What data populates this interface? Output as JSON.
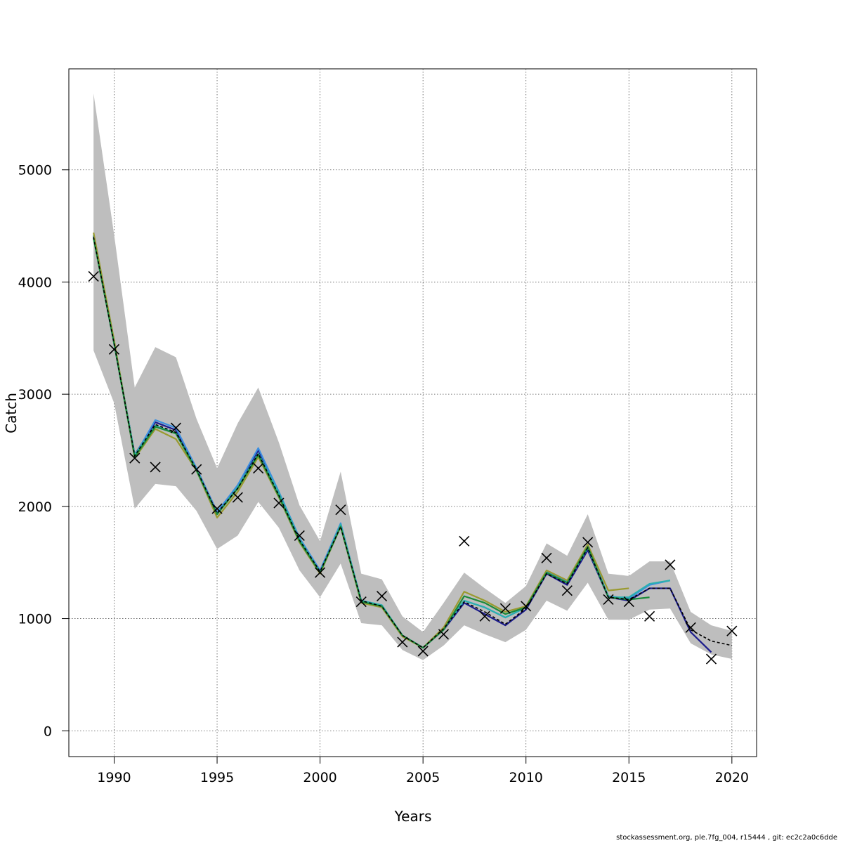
{
  "chart_data": {
    "type": "line",
    "xlabel": "Years",
    "ylabel": "Catch",
    "xlim": [
      1987.8,
      2021.2
    ],
    "ylim": [
      -230,
      5900
    ],
    "xticks": [
      1990,
      1995,
      2000,
      2005,
      2010,
      2015,
      2020
    ],
    "yticks": [
      0,
      1000,
      2000,
      3000,
      4000,
      5000
    ],
    "grid": true,
    "colors": {
      "band": "#bebebe",
      "observed": "#000000",
      "base": "#000000",
      "series": [
        "#1a1a8c",
        "#3c8fe0",
        "#2ab0b0",
        "#9a9a30",
        "#1a8a3a"
      ]
    },
    "band": {
      "x": [
        1989,
        1990,
        1991,
        1992,
        1993,
        1994,
        1995,
        1996,
        1997,
        1998,
        1999,
        2000,
        2001,
        2002,
        2003,
        2004,
        2005,
        2006,
        2007,
        2008,
        2009,
        2010,
        2011,
        2012,
        2013,
        2014,
        2015,
        2016,
        2017,
        2018,
        2019,
        2020
      ],
      "upper": [
        5680,
        4420,
        3060,
        3420,
        3330,
        2780,
        2340,
        2740,
        3060,
        2570,
        2010,
        1690,
        2310,
        1400,
        1350,
        1020,
        880,
        1140,
        1410,
        1270,
        1140,
        1290,
        1670,
        1560,
        1930,
        1400,
        1380,
        1510,
        1510,
        1060,
        940,
        890
      ],
      "lower": [
        3390,
        2920,
        1980,
        2200,
        2180,
        1960,
        1620,
        1740,
        2040,
        1810,
        1430,
        1190,
        1490,
        960,
        940,
        720,
        630,
        760,
        940,
        860,
        790,
        900,
        1160,
        1070,
        1320,
        990,
        990,
        1080,
        1090,
        780,
        680,
        640
      ]
    },
    "observed": {
      "marker": "x",
      "x": [
        1989,
        1990,
        1991,
        1992,
        1993,
        1994,
        1995,
        1996,
        1997,
        1998,
        1999,
        2000,
        2001,
        2002,
        2003,
        2004,
        2005,
        2006,
        2007,
        2008,
        2009,
        2010,
        2011,
        2012,
        2013,
        2014,
        2015,
        2016,
        2017,
        2018,
        2019,
        2020
      ],
      "y": [
        4050,
        3400,
        2430,
        2350,
        2700,
        2330,
        1980,
        2080,
        2340,
        2030,
        1740,
        1410,
        1970,
        1150,
        1200,
        790,
        710,
        860,
        1690,
        1020,
        1090,
        1110,
        1540,
        1250,
        1680,
        1170,
        1150,
        1020,
        1480,
        920,
        640,
        890
      ]
    },
    "base": {
      "dashed": true,
      "x": [
        1989,
        1990,
        1991,
        1992,
        1993,
        1994,
        1995,
        1996,
        1997,
        1998,
        1999,
        2000,
        2001,
        2002,
        2003,
        2004,
        2005,
        2006,
        2007,
        2008,
        2009,
        2010,
        2011,
        2012,
        2013,
        2014,
        2015,
        2016,
        2017,
        2018,
        2019,
        2020
      ],
      "y": [
        4400,
        3450,
        2450,
        2730,
        2660,
        2330,
        1940,
        2160,
        2470,
        2100,
        1700,
        1420,
        1820,
        1160,
        1110,
        850,
        740,
        910,
        1150,
        1060,
        950,
        1090,
        1400,
        1310,
        1630,
        1190,
        1170,
        1270,
        1270,
        900,
        800,
        760
      ]
    },
    "series": [
      {
        "x": [
          1989,
          1990,
          1991,
          1992,
          1993,
          1994,
          1995,
          1996,
          1997,
          1998,
          1999,
          2000,
          2001,
          2002,
          2003,
          2004,
          2005,
          2006,
          2007,
          2008,
          2009,
          2010,
          2011,
          2012,
          2013,
          2014,
          2015,
          2016,
          2017,
          2018,
          2019
        ],
        "y": [
          4410,
          3460,
          2460,
          2750,
          2680,
          2340,
          1950,
          2180,
          2500,
          2110,
          1710,
          1420,
          1830,
          1160,
          1110,
          850,
          740,
          900,
          1140,
          1040,
          940,
          1080,
          1400,
          1300,
          1610,
          1190,
          1160,
          1270,
          1270,
          880,
          700
        ]
      },
      {
        "x": [
          1989,
          1990,
          1991,
          1992,
          1993,
          1994,
          1995,
          1996,
          1997,
          1998,
          1999,
          2000,
          2001,
          2002,
          2003,
          2004,
          2005,
          2006,
          2007,
          2008,
          2009,
          2010,
          2011,
          2012,
          2013,
          2014,
          2015,
          2016,
          2017
        ],
        "y": [
          4400,
          3450,
          2450,
          2770,
          2700,
          2340,
          1950,
          2190,
          2520,
          2130,
          1720,
          1430,
          1850,
          1160,
          1120,
          850,
          740,
          910,
          1160,
          1100,
          1010,
          1100,
          1420,
          1330,
          1650,
          1200,
          1180,
          1300,
          1340
        ]
      },
      {
        "x": [
          1989,
          1990,
          1991,
          1992,
          1993,
          1994,
          1995,
          1996,
          1997,
          1998,
          1999,
          2000,
          2001,
          2002,
          2003,
          2004,
          2005,
          2006,
          2007,
          2008,
          2009,
          2010,
          2011,
          2012,
          2013,
          2014,
          2015,
          2016,
          2017
        ],
        "y": [
          4420,
          3460,
          2460,
          2720,
          2650,
          2330,
          1930,
          2170,
          2470,
          2120,
          1710,
          1410,
          1840,
          1160,
          1120,
          850,
          740,
          910,
          1160,
          1100,
          1010,
          1100,
          1410,
          1320,
          1630,
          1190,
          1190,
          1310,
          1340
        ]
      },
      {
        "x": [
          1989,
          1990,
          1991,
          1992,
          1993,
          1994,
          1995,
          1996,
          1997,
          1998,
          1999,
          2000,
          2001,
          2002,
          2003,
          2004,
          2005,
          2006,
          2007,
          2008,
          2009,
          2010,
          2011,
          2012,
          2013,
          2014,
          2015
        ],
        "y": [
          4440,
          3480,
          2430,
          2690,
          2600,
          2320,
          1900,
          2130,
          2440,
          2080,
          1680,
          1400,
          1820,
          1140,
          1100,
          840,
          740,
          920,
          1240,
          1160,
          1060,
          1110,
          1430,
          1340,
          1660,
          1250,
          1270
        ]
      },
      {
        "x": [
          1989,
          1990,
          1991,
          1992,
          1993,
          1994,
          1995,
          1996,
          1997,
          1998,
          1999,
          2000,
          2001,
          2002,
          2003,
          2004,
          2005,
          2006,
          2007,
          2008,
          2009,
          2010,
          2011,
          2012,
          2013,
          2014,
          2015,
          2016
        ],
        "y": [
          4390,
          3450,
          2440,
          2710,
          2650,
          2320,
          1930,
          2160,
          2460,
          2090,
          1690,
          1410,
          1820,
          1150,
          1110,
          850,
          740,
          900,
          1200,
          1140,
          1040,
          1100,
          1410,
          1320,
          1640,
          1190,
          1170,
          1190
        ]
      }
    ]
  },
  "footer": "stockassessment.org, ple.7fg_004, r15444 , git: ec2c2a0c6dde"
}
